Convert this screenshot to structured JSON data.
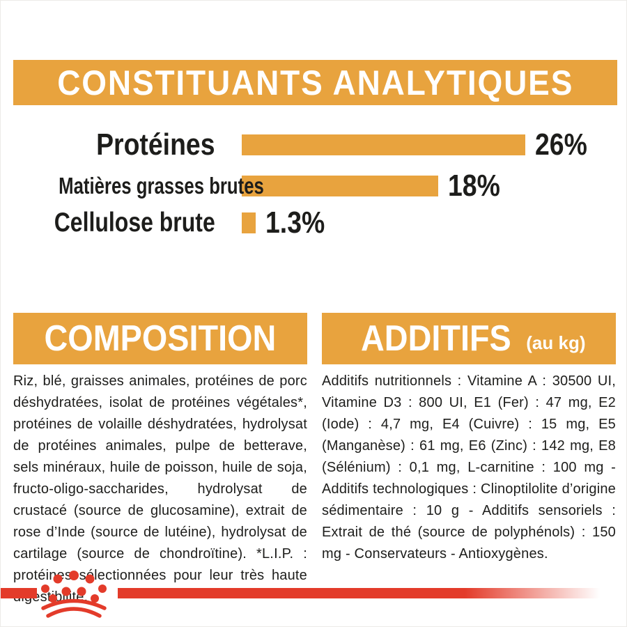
{
  "colors": {
    "accent_orange": "#E8A33E",
    "brand_red": "#E33B2A",
    "ink": "#1D1D1B",
    "banner_text": "#FFFFFF"
  },
  "header": {
    "title": "CONSTITUANTS ANALYTIQUES"
  },
  "chart_data": {
    "type": "bar",
    "orientation": "horizontal",
    "title": "CONSTITUANTS ANALYTIQUES",
    "categories": [
      "Protéines",
      "Matières grasses brutes",
      "Cellulose brute"
    ],
    "values": [
      26,
      18,
      1.3
    ],
    "value_labels": [
      "26%",
      "18%",
      "1.3%"
    ],
    "unit": "%",
    "xlim": [
      0,
      26
    ],
    "bar_color": "#E8A33E",
    "label_color": "#1D1D1B",
    "grid": false,
    "legend": false,
    "value_label_position": "end-of-bar"
  },
  "composition": {
    "title": "COMPOSITION",
    "body": "Riz, blé, graisses animales, protéines de porc déshydratées, isolat de protéines végétales*, protéines de volaille déshydratées, hydrolysat de protéines animales, pulpe de betterave, sels minéraux, huile de poisson, huile de soja, fructo-oligo-saccharides, hydrolysat de crustacé (source de glucosamine), extrait de rose d’Inde (source de lutéine), hydrolysat de cartilage (source de chondroïtine). *L.I.P. : protéines sélectionnées pour leur très haute digestibilité."
  },
  "additives": {
    "title": "ADDITIFS",
    "title_suffix": "(au kg)",
    "body": "Additifs nutritionnels : Vitamine A : 30500 UI, Vitamine D3 : 800 UI, E1 (Fer) : 47 mg, E2 (Iode) : 4,7 mg, E4 (Cuivre) : 15 mg, E5 (Manganèse) : 61 mg, E6 (Zinc) : 142 mg, E8 (Sélénium) : 0,1 mg, L-carnitine : 100 mg - Additifs technologiques : Clinoptilolite d’origine sédimentaire : 10 g - Additifs sensoriels : Extrait de thé (source de polyphénols) : 150 mg - Conservateurs - Antioxygènes."
  },
  "footer": {
    "brand_logo": "royal-canin-crown",
    "stripe_color": "#E33B2A"
  }
}
